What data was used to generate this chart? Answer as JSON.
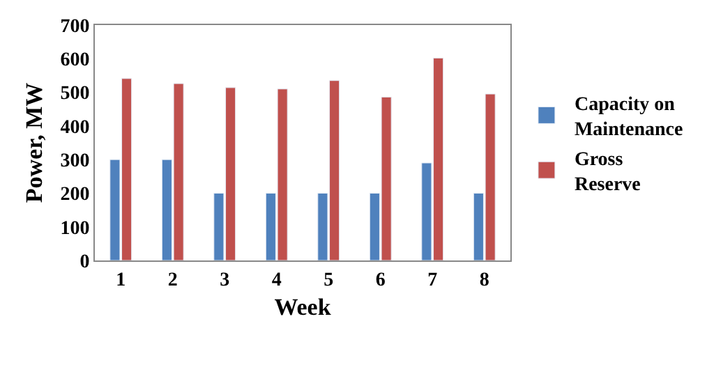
{
  "chart_data": {
    "type": "bar",
    "xlabel": "Week",
    "ylabel": "Power, MW",
    "categories": [
      "1",
      "2",
      "3",
      "4",
      "5",
      "6",
      "7",
      "8"
    ],
    "series": [
      {
        "name": "Capacity on Maintenance",
        "color": "#4f81bd",
        "values": [
          300,
          300,
          200,
          200,
          200,
          200,
          290,
          200
        ]
      },
      {
        "name": "Gross Reserve",
        "color": "#c0504d",
        "values": [
          541,
          526,
          514,
          510,
          535,
          486,
          602,
          495
        ]
      }
    ],
    "ylim": [
      0,
      700
    ],
    "yticks": [
      0,
      100,
      200,
      300,
      400,
      500,
      600,
      700
    ],
    "grid": false,
    "legend": "right"
  }
}
